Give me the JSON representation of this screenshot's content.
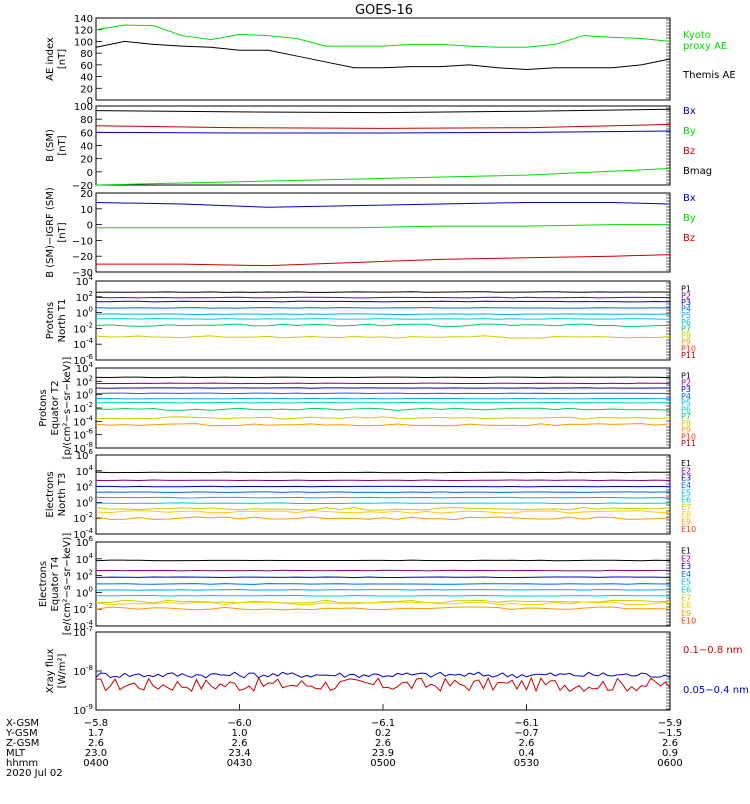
{
  "title": "GOES-16",
  "colors": {
    "black": "#000000",
    "green": "#00dd00",
    "blue": "#0000cc",
    "red": "#cc0000",
    "p_cols": [
      "#000000",
      "#800080",
      "#0000cc",
      "#0066ff",
      "#00aaff",
      "#00cccc",
      "#00cc66",
      "#cccc00",
      "#ff9900",
      "#ff3300",
      "#cc0000"
    ],
    "e_cols": [
      "#000000",
      "#800080",
      "#0000cc",
      "#0066ff",
      "#00aaff",
      "#00cccc",
      "#cccc00",
      "#ffcc00",
      "#ff9900",
      "#ff3300",
      "#cc0000"
    ]
  },
  "chart_data": [
    {
      "type": "line",
      "id": "ae",
      "ylabel": "AE index\n[nT]",
      "ylim": [
        0,
        140
      ],
      "ticks": [
        0,
        20,
        40,
        60,
        80,
        100,
        120,
        140
      ],
      "tick_labels": [
        "0",
        "20",
        "40",
        "60",
        "80",
        "100",
        "120",
        "140"
      ],
      "x": [
        0,
        0.05,
        0.1,
        0.15,
        0.2,
        0.25,
        0.3,
        0.35,
        0.4,
        0.45,
        0.5,
        0.55,
        0.6,
        0.65,
        0.7,
        0.75,
        0.8,
        0.85,
        0.9,
        0.95,
        1.0
      ],
      "series": [
        {
          "name": "Kyoto\nproxy AE",
          "color": "green",
          "values": [
            120,
            128,
            127,
            110,
            103,
            112,
            110,
            105,
            92,
            92,
            92,
            95,
            95,
            92,
            90,
            90,
            95,
            110,
            107,
            105,
            100
          ]
        },
        {
          "name": "Themis AE",
          "color": "black",
          "values": [
            90,
            100,
            95,
            92,
            90,
            85,
            85,
            75,
            65,
            55,
            55,
            57,
            57,
            60,
            55,
            52,
            55,
            55,
            55,
            60,
            70
          ]
        }
      ]
    },
    {
      "type": "line",
      "id": "bsm",
      "ylabel": "B (SM)\n[nT]",
      "ylim": [
        -20,
        100
      ],
      "ticks": [
        -20,
        0,
        20,
        40,
        60,
        80,
        100
      ],
      "tick_labels": [
        "−20",
        "0",
        "20",
        "40",
        "60",
        "80",
        "100"
      ],
      "x": [
        0,
        0.25,
        0.5,
        0.75,
        1.0
      ],
      "series": [
        {
          "name": "Bx",
          "color": "blue",
          "values": [
            60,
            59,
            59,
            60,
            62
          ]
        },
        {
          "name": "By",
          "color": "green",
          "values": [
            -20,
            -15,
            -10,
            -5,
            5
          ]
        },
        {
          "name": "Bz",
          "color": "red",
          "values": [
            70,
            67,
            66,
            67,
            72
          ]
        },
        {
          "name": "Bmag",
          "color": "black",
          "values": [
            93,
            91,
            90,
            92,
            95
          ]
        }
      ]
    },
    {
      "type": "line",
      "id": "bigrf",
      "ylabel": "B (SM)−IGRF (SM)\n[nT]",
      "ylim": [
        -30,
        20
      ],
      "ticks": [
        -30,
        -20,
        -10,
        0,
        10,
        20
      ],
      "tick_labels": [
        "−30",
        "−20",
        "−10",
        "0",
        "10",
        "20"
      ],
      "x": [
        0,
        0.15,
        0.3,
        0.45,
        0.6,
        0.75,
        0.9,
        1.0
      ],
      "series": [
        {
          "name": "Bx",
          "color": "blue",
          "values": [
            14,
            13,
            11,
            12,
            13,
            14,
            14,
            13
          ]
        },
        {
          "name": "By",
          "color": "green",
          "values": [
            -2,
            -2,
            -2,
            -2,
            -1,
            -1,
            0,
            0
          ]
        },
        {
          "name": "Bz",
          "color": "red",
          "values": [
            -25,
            -25,
            -26,
            -24,
            -22,
            -21,
            -20,
            -19
          ]
        }
      ]
    },
    {
      "type": "line",
      "id": "protT1",
      "log": true,
      "ylabel": "Protons\nNorth T1",
      "ylim_exp": [
        -6,
        4
      ],
      "ticks_exp": [
        -6,
        -4,
        -2,
        0,
        2,
        4
      ],
      "labels": [
        "P1",
        "P2",
        "P3",
        "P4",
        "P5",
        "P6",
        "P7",
        "P8",
        "P9",
        "P10",
        "P11"
      ],
      "series_exp": [
        2.6,
        1.9,
        1.4,
        0.6,
        -0.2,
        -0.8,
        -1.6,
        -3.1,
        null,
        null,
        null
      ]
    },
    {
      "type": "line",
      "id": "protT2",
      "log": true,
      "ylabel": "Protons\nEquator T2\n[p/(cm²−s−sr−keV)]",
      "ylim_exp": [
        -8,
        4
      ],
      "ticks_exp": [
        -8,
        -6,
        -4,
        -2,
        0,
        2,
        4
      ],
      "labels": [
        "P1",
        "P2",
        "P3",
        "P4",
        "P5",
        "P6",
        "P7",
        "P8",
        "P9",
        "P10",
        "P11"
      ],
      "series_exp": [
        2.6,
        1.7,
        1.0,
        0.2,
        -0.6,
        -1.2,
        -2.2,
        -3.5,
        -4.5,
        null,
        null
      ]
    },
    {
      "type": "line",
      "id": "elecT3",
      "log": true,
      "ylabel": "Electrons\nNorth T3",
      "ylim_exp": [
        -4,
        6
      ],
      "ticks_exp": [
        -4,
        -2,
        0,
        2,
        4,
        6
      ],
      "labels": [
        "E1",
        "E2",
        "E3",
        "E4",
        "E5",
        "E6",
        "E7",
        "E8",
        "E9",
        "E10"
      ],
      "series_exp": [
        3.8,
        2.8,
        2.0,
        1.3,
        0.6,
        -0.1,
        -0.8,
        -1.2,
        -2.0,
        null
      ]
    },
    {
      "type": "line",
      "id": "elecT4",
      "log": true,
      "ylabel": "Electrons\nEquator T4\n[e/(cm²−s−sr−keV)]",
      "ylim_exp": [
        -4,
        6
      ],
      "ticks_exp": [
        -4,
        -2,
        0,
        2,
        4,
        6
      ],
      "labels": [
        "E1",
        "E2",
        "E3",
        "E4",
        "E5",
        "E6",
        "E7",
        "E8",
        "E9",
        "E10"
      ],
      "series_exp": [
        3.8,
        2.6,
        1.8,
        1.0,
        0.3,
        -0.4,
        -1.1,
        -1.3,
        -1.9,
        null
      ]
    },
    {
      "type": "line",
      "id": "xray",
      "log": true,
      "ylabel": "Xray flux\n[W/m²]",
      "ylim_exp": [
        -9,
        -7
      ],
      "ticks_exp": [
        -9,
        -8,
        -7
      ],
      "series": [
        {
          "name": "0.1−0.8 nm",
          "color": "red",
          "exp": -8.35
        },
        {
          "name": "0.05−0.4 nm",
          "color": "blue",
          "exp": -8.1
        }
      ]
    }
  ],
  "xaxis": {
    "rows": [
      {
        "label": "X-GSM",
        "values": [
          "−5.8",
          "−6.0",
          "−6.1",
          "−6.1",
          "−5.9"
        ]
      },
      {
        "label": "Y-GSM",
        "values": [
          "1.7",
          "1.0",
          "0.2",
          "−0.7",
          "−1.5"
        ]
      },
      {
        "label": "Z-GSM",
        "values": [
          "2.6",
          "2.6",
          "2.6",
          "2.6",
          "2.6"
        ]
      },
      {
        "label": "MLT",
        "values": [
          "23.0",
          "23.4",
          "23.9",
          "0.4",
          "0.9"
        ]
      },
      {
        "label": "hhmm",
        "values": [
          "0400",
          "0430",
          "0500",
          "0530",
          "0600"
        ]
      }
    ],
    "date": "2020 Jul 02"
  }
}
